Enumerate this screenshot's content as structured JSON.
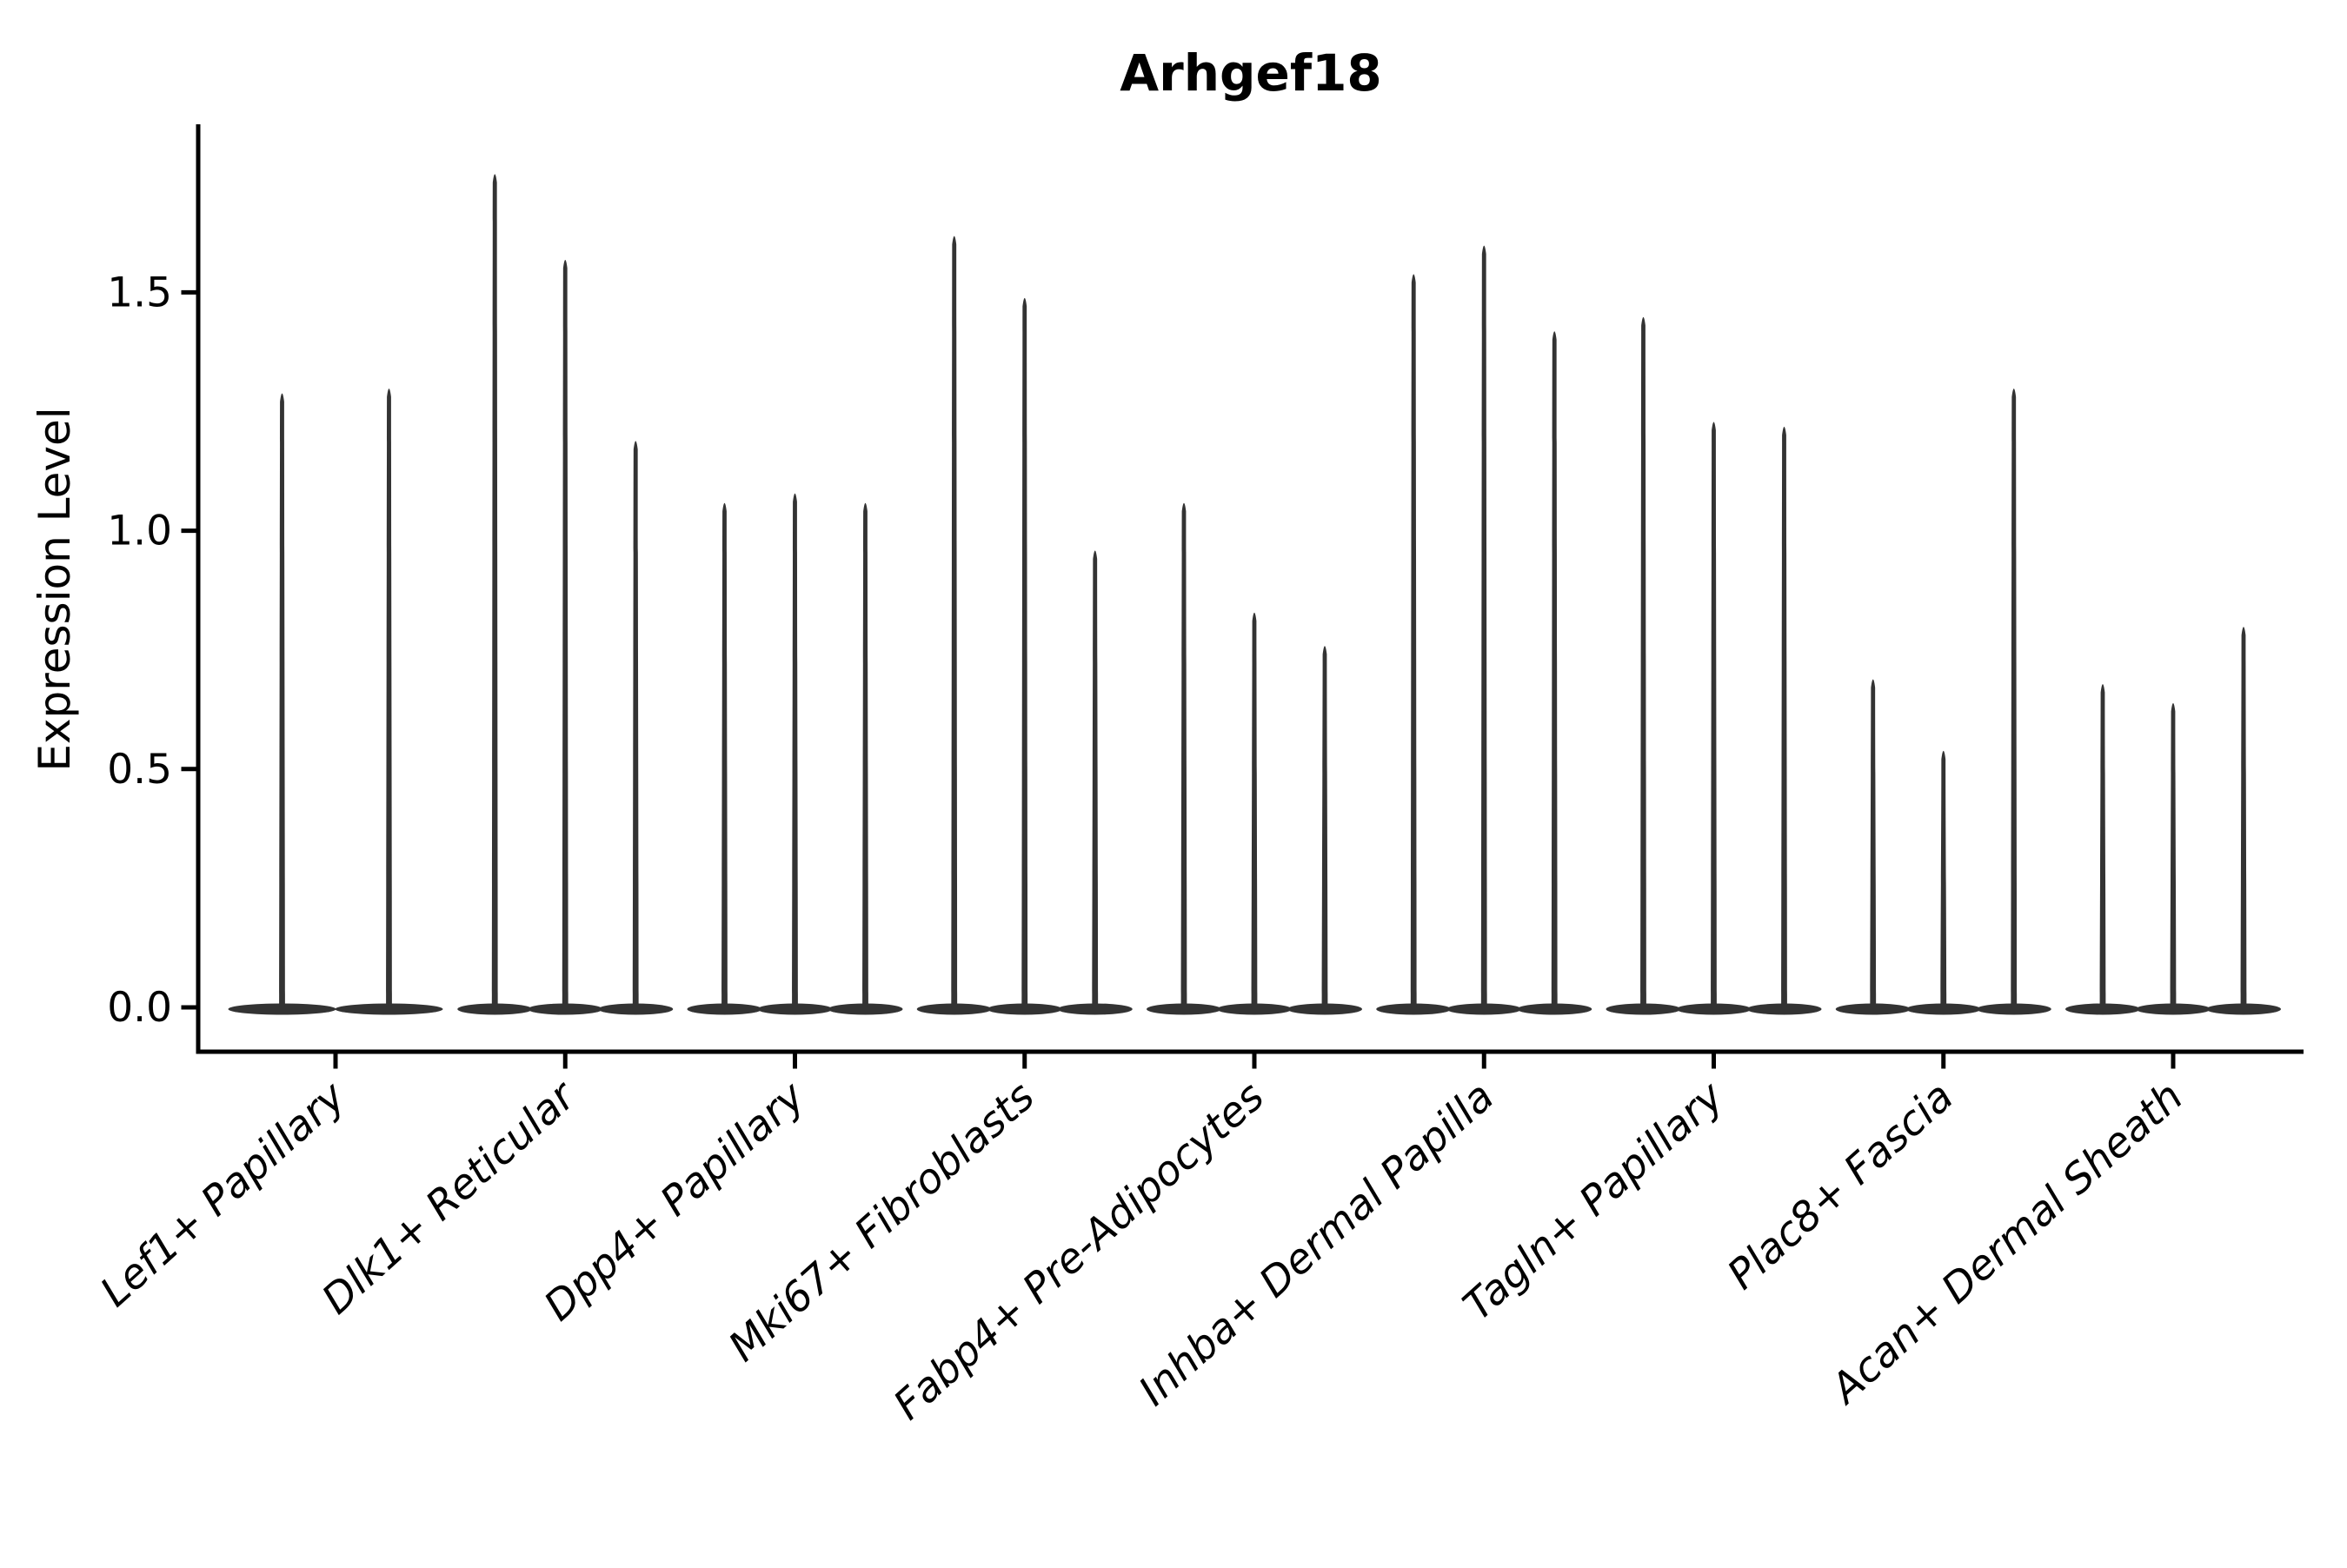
{
  "figure": {
    "title": "Arhgef18",
    "background_color": "#ffffff",
    "axis_color": "#000000",
    "violin_color": "#333333"
  },
  "chart_data": {
    "type": "violin",
    "title": "Arhgef18",
    "xlabel": "",
    "ylabel": "Expression Level",
    "yticks": [
      0.0,
      0.5,
      1.0,
      1.5
    ],
    "ytick_labels": [
      "0.0",
      "0.5",
      "1.0",
      "1.5"
    ],
    "ylim": [
      -0.1,
      1.85
    ],
    "grid": false,
    "legend": "none",
    "x_tick_label_rotation_deg": 42,
    "categories": [
      "Lef1+ Papillary",
      "Dlk1+ Reticular",
      "Dpp4+ Papillary",
      "Mki67+ Fibroblasts",
      "Fabp4+ Pre-Adipocytes",
      "Inhba+ Dermal Papilla",
      "Tagln+ Papillary",
      "Plac8+ Fascia",
      "Acan+ Dermal Sheath"
    ],
    "description": "Needle-like violins: bulk of cells at expression 0 (flat base lens), thin spike up to the max expressing cell per violin.",
    "groups": [
      {
        "category": "Lef1+ Papillary",
        "violin_max_values": [
          1.3,
          1.31
        ]
      },
      {
        "category": "Dlk1+ Reticular",
        "violin_max_values": [
          1.76,
          1.58,
          1.2
        ]
      },
      {
        "category": "Dpp4+ Papillary",
        "violin_max_values": [
          1.07,
          1.09,
          1.07
        ]
      },
      {
        "category": "Mki67+ Fibroblasts",
        "violin_max_values": [
          1.63,
          1.5,
          0.97
        ]
      },
      {
        "category": "Fabp4+ Pre-Adipocytes",
        "violin_max_values": [
          1.07,
          0.84,
          0.77
        ]
      },
      {
        "category": "Inhba+ Dermal Papilla",
        "violin_max_values": [
          1.55,
          1.61,
          1.43
        ]
      },
      {
        "category": "Tagln+ Papillary",
        "violin_max_values": [
          1.46,
          1.24,
          1.23
        ]
      },
      {
        "category": "Plac8+ Fascia",
        "violin_max_values": [
          0.7,
          0.55,
          1.31
        ]
      },
      {
        "category": "Acan+ Dermal Sheath",
        "violin_max_values": [
          0.69,
          0.65,
          0.81
        ]
      }
    ],
    "baseline_value": 0.0
  }
}
